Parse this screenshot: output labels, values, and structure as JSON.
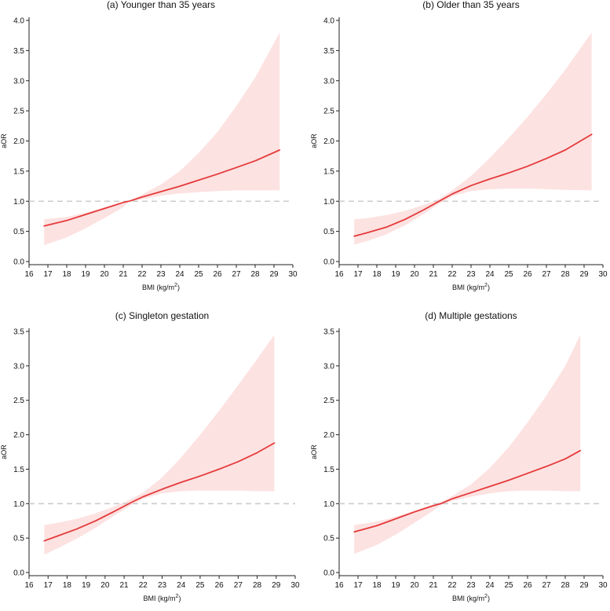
{
  "chart_data": [
    {
      "type": "line",
      "panel": "a",
      "title": "(a) Younger than 35 years",
      "xlabel": "BMI (kg/m",
      "xlabel_sup": "2",
      "xlabel_end": ")",
      "ylabel": "aOR",
      "xlim": [
        16,
        30
      ],
      "ylim": [
        0,
        4
      ],
      "xticks": [
        16,
        17,
        18,
        19,
        20,
        21,
        22,
        23,
        24,
        25,
        26,
        27,
        28,
        29,
        30
      ],
      "yticks": [
        "0.0",
        "0.5",
        "1.0",
        "1.5",
        "2.0",
        "2.5",
        "3.0",
        "3.5",
        "4.0"
      ],
      "reference_line": 1.0,
      "series": [
        {
          "name": "aOR",
          "x": [
            16.8,
            18,
            19,
            20,
            21,
            21.3,
            22,
            23,
            24,
            25,
            26,
            27,
            28,
            29.3
          ],
          "y": [
            0.59,
            0.68,
            0.78,
            0.88,
            0.98,
            1.0,
            1.07,
            1.16,
            1.25,
            1.35,
            1.45,
            1.56,
            1.67,
            1.85
          ],
          "lower": [
            0.27,
            0.4,
            0.55,
            0.72,
            0.9,
            1.0,
            1.03,
            1.09,
            1.13,
            1.15,
            1.17,
            1.18,
            1.18,
            1.18
          ],
          "upper": [
            0.7,
            0.74,
            0.81,
            0.9,
            0.99,
            1.0,
            1.11,
            1.28,
            1.5,
            1.8,
            2.15,
            2.58,
            3.05,
            3.8
          ]
        }
      ]
    },
    {
      "type": "line",
      "panel": "b",
      "title": "(b) Older than 35 years",
      "xlabel": "BMI (kg/m",
      "xlabel_sup": "2",
      "xlabel_end": ")",
      "ylabel": "aOR",
      "xlim": [
        16,
        30
      ],
      "ylim": [
        0,
        4
      ],
      "xticks": [
        16,
        17,
        18,
        19,
        20,
        21,
        22,
        23,
        24,
        25,
        26,
        27,
        28,
        29,
        30
      ],
      "yticks": [
        "0.0",
        "0.5",
        "1.0",
        "1.5",
        "2.0",
        "2.5",
        "3.0",
        "3.5",
        "4.0"
      ],
      "reference_line": 1.0,
      "series": [
        {
          "name": "aOR",
          "x": [
            16.8,
            17.5,
            18.5,
            19.5,
            20.5,
            21.3,
            22,
            23,
            24,
            25,
            26,
            27,
            28,
            29.4
          ],
          "y": [
            0.42,
            0.48,
            0.57,
            0.7,
            0.86,
            1.0,
            1.12,
            1.26,
            1.37,
            1.47,
            1.58,
            1.71,
            1.85,
            2.11
          ],
          "lower": [
            0.28,
            0.34,
            0.45,
            0.6,
            0.79,
            0.96,
            1.08,
            1.17,
            1.2,
            1.21,
            1.21,
            1.2,
            1.19,
            1.18
          ],
          "upper": [
            0.7,
            0.72,
            0.77,
            0.84,
            0.94,
            1.04,
            1.18,
            1.42,
            1.72,
            2.05,
            2.4,
            2.78,
            3.18,
            3.8
          ]
        }
      ]
    },
    {
      "type": "line",
      "panel": "c",
      "title": "(c) Singleton gestation",
      "xlabel": "BMI (kg/m",
      "xlabel_sup": "2",
      "xlabel_end": ")",
      "ylabel": "aOR",
      "xlim": [
        16,
        30
      ],
      "ylim": [
        0,
        3.5
      ],
      "xticks": [
        16,
        17,
        18,
        19,
        20,
        21,
        22,
        23,
        24,
        25,
        26,
        27,
        28,
        29,
        30
      ],
      "yticks": [
        "0.0",
        "0.5",
        "1.0",
        "1.5",
        "2.0",
        "2.5",
        "3.0",
        "3.5"
      ],
      "reference_line": 1.0,
      "series": [
        {
          "name": "aOR",
          "x": [
            16.8,
            17.5,
            18.5,
            19.5,
            20.5,
            21.4,
            22,
            23,
            24,
            25,
            26,
            27,
            28,
            28.9
          ],
          "y": [
            0.46,
            0.53,
            0.63,
            0.75,
            0.89,
            1.02,
            1.1,
            1.21,
            1.31,
            1.4,
            1.5,
            1.61,
            1.74,
            1.88
          ],
          "lower": [
            0.26,
            0.35,
            0.49,
            0.65,
            0.83,
            0.98,
            1.07,
            1.15,
            1.18,
            1.19,
            1.19,
            1.19,
            1.18,
            1.18
          ],
          "upper": [
            0.69,
            0.72,
            0.78,
            0.86,
            0.96,
            1.07,
            1.16,
            1.38,
            1.67,
            2.0,
            2.35,
            2.72,
            3.1,
            3.45
          ]
        }
      ]
    },
    {
      "type": "line",
      "panel": "d",
      "title": "(d) Multiple gestations",
      "xlabel": "BMI (kg/m",
      "xlabel_sup": "2",
      "xlabel_end": ")",
      "ylabel": "aOR",
      "xlim": [
        16,
        30
      ],
      "ylim": [
        0,
        3.5
      ],
      "xticks": [
        16,
        17,
        18,
        19,
        20,
        21,
        22,
        23,
        24,
        25,
        26,
        27,
        28,
        29,
        30
      ],
      "yticks": [
        "0.0",
        "0.5",
        "1.0",
        "1.5",
        "2.0",
        "2.5",
        "3.0",
        "3.5"
      ],
      "reference_line": 1.0,
      "series": [
        {
          "name": "aOR",
          "x": [
            16.8,
            18,
            19,
            20,
            21,
            21.4,
            22,
            23,
            24,
            25,
            26,
            27,
            28,
            28.8
          ],
          "y": [
            0.59,
            0.68,
            0.78,
            0.88,
            0.97,
            1.0,
            1.07,
            1.16,
            1.25,
            1.34,
            1.44,
            1.54,
            1.65,
            1.77
          ],
          "lower": [
            0.27,
            0.4,
            0.55,
            0.72,
            0.9,
            0.98,
            1.04,
            1.1,
            1.15,
            1.18,
            1.19,
            1.19,
            1.18,
            1.18
          ],
          "upper": [
            0.69,
            0.74,
            0.81,
            0.9,
            0.99,
            1.02,
            1.11,
            1.28,
            1.52,
            1.82,
            2.18,
            2.57,
            3.0,
            3.45
          ]
        }
      ]
    }
  ],
  "colors": {
    "line": "#e53a3a",
    "band": "#fde2e2",
    "reference": "#cccccc",
    "axis": "#222222"
  }
}
